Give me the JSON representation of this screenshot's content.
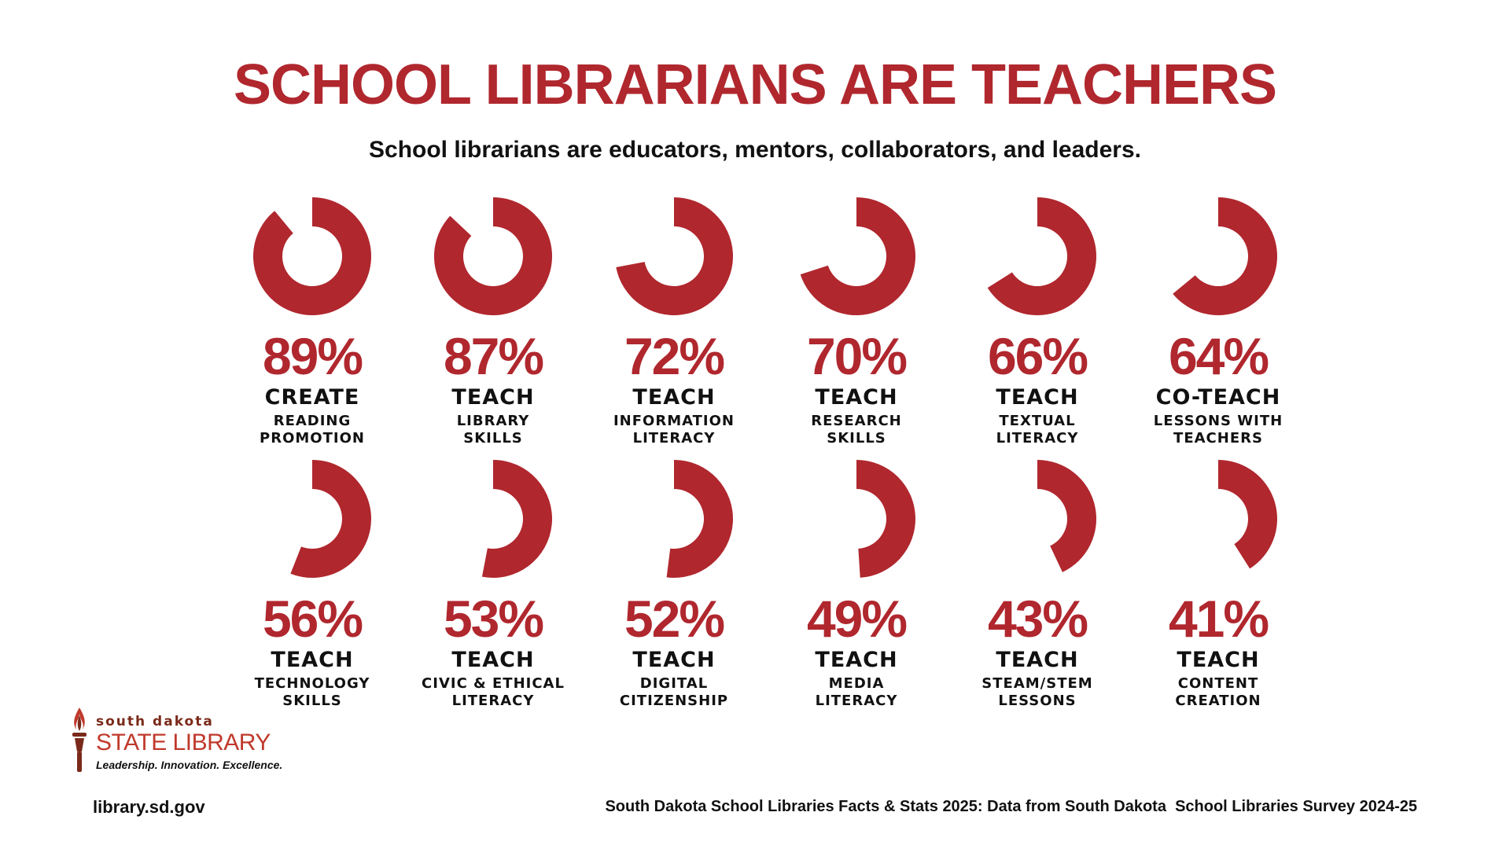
{
  "header": {
    "title": "SCHOOL LIBRARIANS ARE TEACHERS",
    "subtitle": "School librarians are educators, mentors, collaborators, and leaders."
  },
  "colors": {
    "accent": "#b0272e",
    "text": "#111111"
  },
  "chart_data": {
    "type": "donut",
    "items": [
      {
        "percent_label": "89%",
        "value": 89,
        "verb": "CREATE",
        "desc_line1": "READING",
        "desc_line2": "PROMOTION"
      },
      {
        "percent_label": "87%",
        "value": 87,
        "verb": "TEACH",
        "desc_line1": "LIBRARY",
        "desc_line2": "SKILLS"
      },
      {
        "percent_label": "72%",
        "value": 72,
        "verb": "TEACH",
        "desc_line1": "INFORMATION",
        "desc_line2": "LITERACY"
      },
      {
        "percent_label": "70%",
        "value": 70,
        "verb": "TEACH",
        "desc_line1": "RESEARCH",
        "desc_line2": "SKILLS"
      },
      {
        "percent_label": "66%",
        "value": 66,
        "verb": "TEACH",
        "desc_line1": "TEXTUAL",
        "desc_line2": "LITERACY"
      },
      {
        "percent_label": "64%",
        "value": 64,
        "verb": "CO-TEACH",
        "desc_line1": "LESSONS WITH",
        "desc_line2": "TEACHERS"
      },
      {
        "percent_label": "56%",
        "value": 56,
        "verb": "TEACH",
        "desc_line1": "TECHNOLOGY",
        "desc_line2": "SKILLS"
      },
      {
        "percent_label": "53%",
        "value": 53,
        "verb": "TEACH",
        "desc_line1": "CIVIC & ETHICAL",
        "desc_line2": "LITERACY"
      },
      {
        "percent_label": "52%",
        "value": 52,
        "verb": "TEACH",
        "desc_line1": "DIGITAL",
        "desc_line2": "CITIZENSHIP"
      },
      {
        "percent_label": "49%",
        "value": 49,
        "verb": "TEACH",
        "desc_line1": "MEDIA",
        "desc_line2": "LITERACY"
      },
      {
        "percent_label": "43%",
        "value": 43,
        "verb": "TEACH",
        "desc_line1": "STEAM/STEM",
        "desc_line2": "LESSONS"
      },
      {
        "percent_label": "41%",
        "value": 41,
        "verb": "TEACH",
        "desc_line1": "CONTENT",
        "desc_line2": "CREATION"
      }
    ]
  },
  "logo": {
    "top_text": "south dakota",
    "main_text": "STATE LIBRARY",
    "tagline": "Leadership. Innovation. Excellence."
  },
  "footer": {
    "website": "library.sd.gov",
    "source": "South Dakota School Libraries Facts & Stats 2025: Data from South Dakota  School Libraries Survey 2024-25"
  }
}
